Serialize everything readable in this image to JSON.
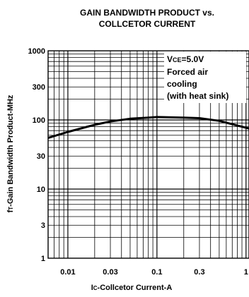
{
  "chart_data": {
    "type": "line",
    "title_line1": "GAIN BANDWIDTH PRODUCT vs.",
    "title_line2": "COLLCETOR CURRENT",
    "ylabel": "fT-Gain Bandwidth Product-MHz",
    "xlabel": "IC-Collcetor Current-A",
    "x_scale": "log",
    "y_scale": "log",
    "xlim": [
      0.006,
      1.08
    ],
    "ylim": [
      1,
      1000
    ],
    "x_ticks": [
      {
        "value": 0.01,
        "label": "0.01"
      },
      {
        "value": 0.03,
        "label": "0.03"
      },
      {
        "value": 0.1,
        "label": "0.1"
      },
      {
        "value": 0.3,
        "label": "0.3"
      },
      {
        "value": 1,
        "label": "1"
      }
    ],
    "y_ticks": [
      {
        "value": 1,
        "label": "1"
      },
      {
        "value": 3,
        "label": "3"
      },
      {
        "value": 10,
        "label": "10"
      },
      {
        "value": 30,
        "label": "30"
      },
      {
        "value": 100,
        "label": "100"
      },
      {
        "value": 300,
        "label": "300"
      },
      {
        "value": 1000,
        "label": "1000"
      }
    ],
    "grid": true,
    "annotation": [
      "VCE=5.0V",
      "Forced air",
      "cooling",
      "(with heat sink)"
    ],
    "series": [
      {
        "x": [
          0.006,
          0.01,
          0.02,
          0.03,
          0.05,
          0.08,
          0.1,
          0.2,
          0.3,
          0.5,
          0.8,
          1.08
        ],
        "y": [
          55,
          67,
          85,
          95,
          104,
          108,
          110,
          108,
          106,
          97,
          83,
          75
        ]
      }
    ]
  }
}
